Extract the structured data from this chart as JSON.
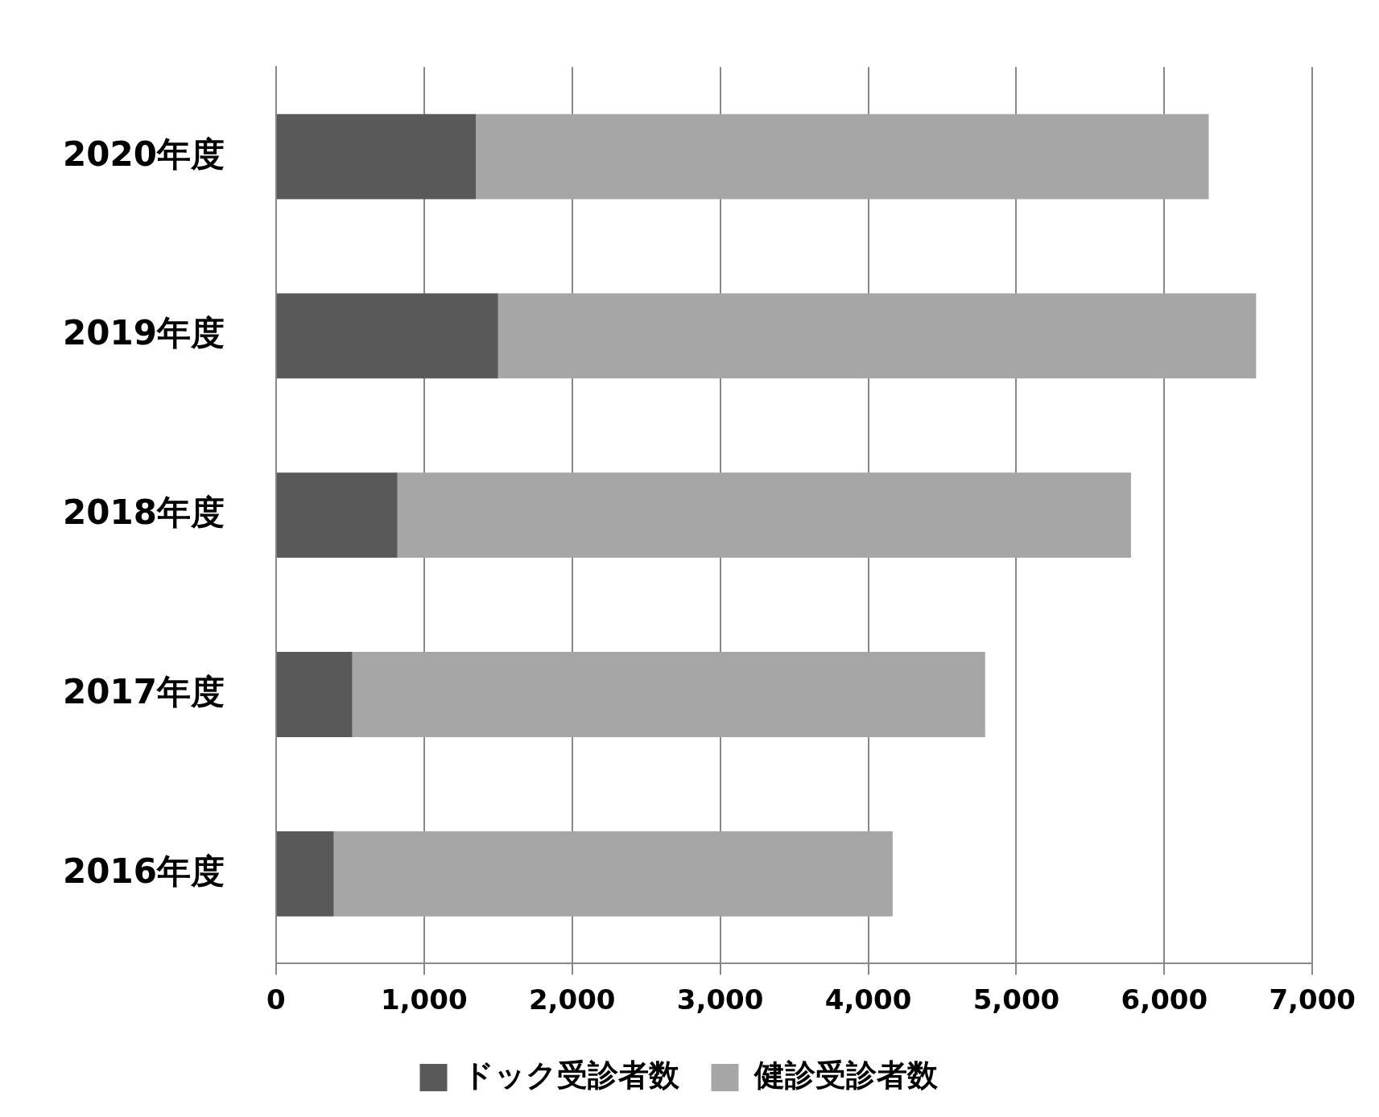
{
  "chart_data": {
    "type": "bar",
    "orientation": "horizontal",
    "stacked": true,
    "categories": [
      "2020年度",
      "2019年度",
      "2018年度",
      "2017年度",
      "2016年度"
    ],
    "series": [
      {
        "name": "ドック受診者数",
        "color": "#595959",
        "values": [
          1350,
          1500,
          820,
          515,
          390
        ]
      },
      {
        "name": "健診受診者数",
        "color": "#a6a6a6",
        "values": [
          4950,
          5120,
          4955,
          4275,
          3775
        ]
      }
    ],
    "xlim": [
      0,
      7000
    ],
    "xticks": [
      {
        "value": 0,
        "label": "0"
      },
      {
        "value": 1000,
        "label": "1,000"
      },
      {
        "value": 2000,
        "label": "2,000"
      },
      {
        "value": 3000,
        "label": "3,000"
      },
      {
        "value": 4000,
        "label": "4,000"
      },
      {
        "value": 5000,
        "label": "5,000"
      },
      {
        "value": 6000,
        "label": "6,000"
      },
      {
        "value": 7000,
        "label": "7,000"
      }
    ],
    "grid": "x",
    "legend": "bottom"
  }
}
